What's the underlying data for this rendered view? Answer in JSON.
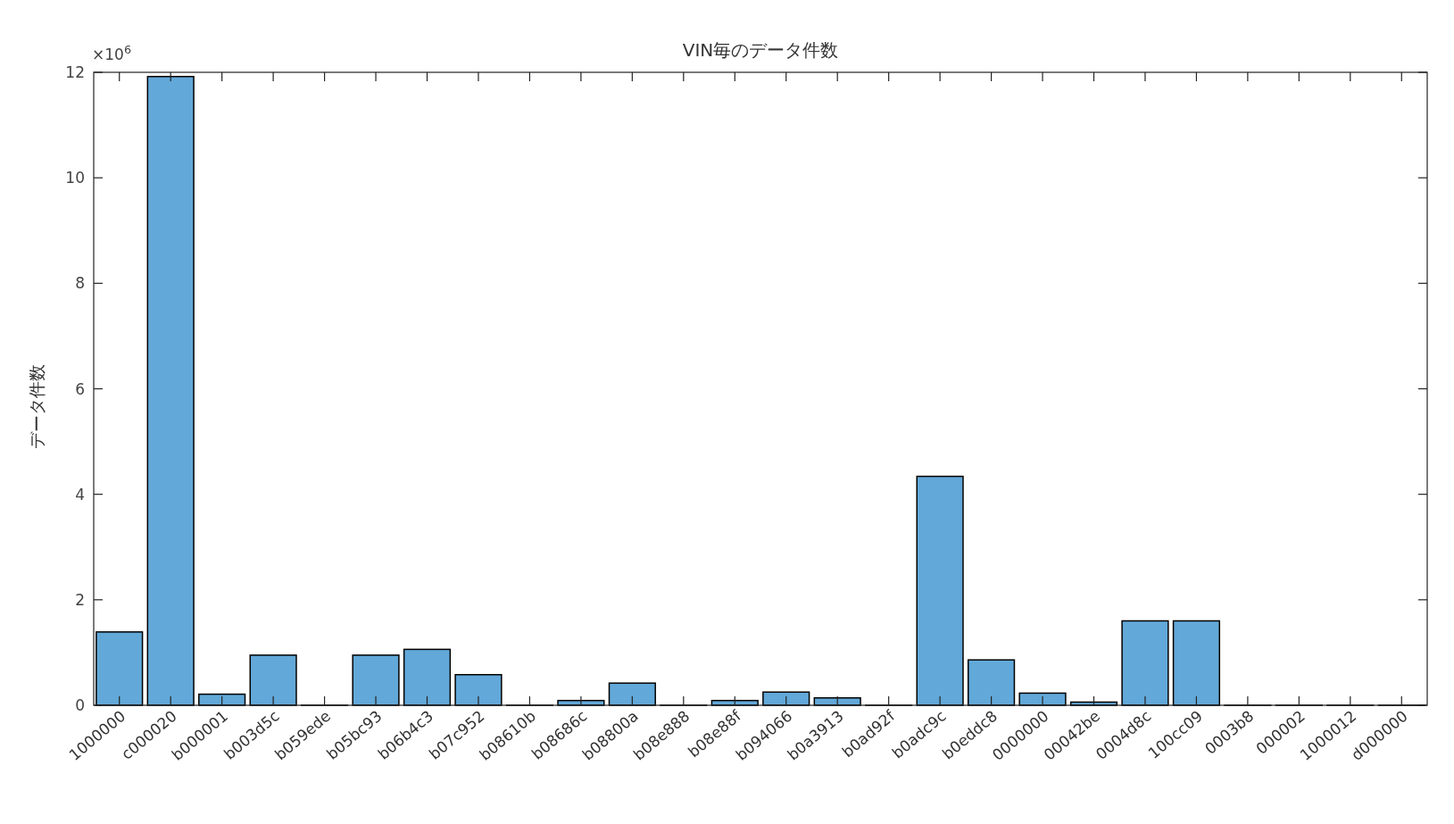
{
  "chart_data": {
    "type": "bar",
    "title": "VIN毎のデータ件数",
    "ylabel": "データ件数",
    "categories": [
      "1000000",
      "c000020",
      "b000001",
      "b003d5c",
      "b059ede",
      "b05bc93",
      "b06b4c3",
      "b07c952",
      "b08610b",
      "b08686c",
      "b08800a",
      "b08e888",
      "b08e88f",
      "b094066",
      "b0a3913",
      "b0ad92f",
      "b0adc9c",
      "b0eddc8",
      "0000000",
      "00042be",
      "0004d8c",
      "100cc09",
      "0003b8",
      "000002",
      "1000012",
      "d000000"
    ],
    "values": [
      1.39,
      11.92,
      0.21,
      0.95,
      0,
      0.95,
      1.06,
      0.58,
      0,
      0.09,
      0.42,
      0,
      0.09,
      0.25,
      0.14,
      0,
      4.34,
      0.86,
      0.23,
      0.06,
      1.6,
      1.6,
      0,
      0,
      0,
      0
    ],
    "color": "#62a8d8",
    "ylim": [
      0,
      12
    ],
    "yticks": [
      0,
      2,
      4,
      6,
      8,
      10,
      12
    ],
    "annotations": [
      "×10$^{6}$"
    ]
  }
}
